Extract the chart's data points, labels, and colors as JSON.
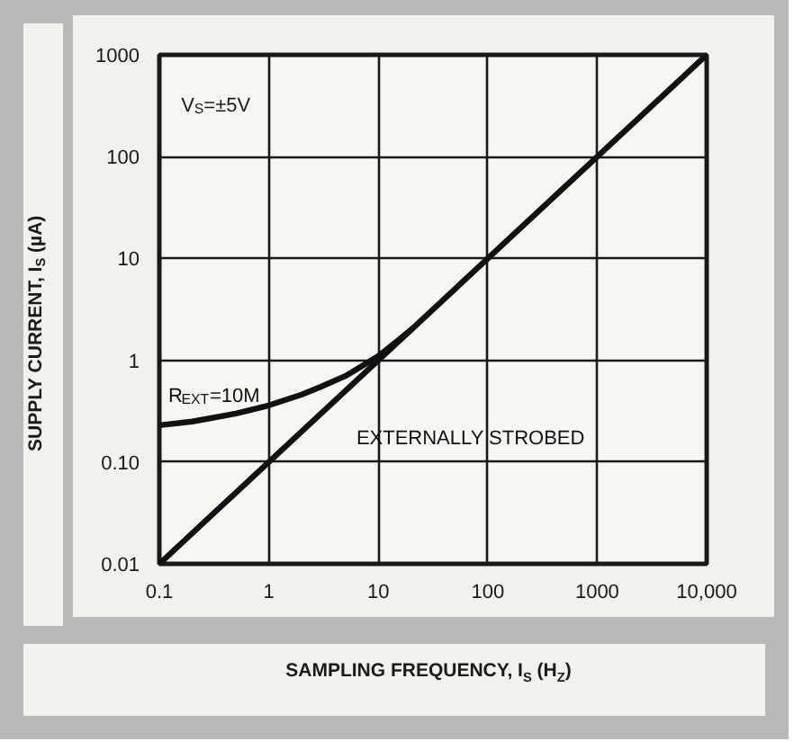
{
  "chart_data": {
    "type": "line",
    "xlabel": "SAMPLING FREQUENCY, I$_{S}$ (H$_{Z}$)",
    "ylabel": "SUPPLY CURRENT, I$_{S}$ (µA)",
    "log": "xy",
    "grid": true,
    "legend": false,
    "marker": "none",
    "line_style": "solid",
    "xlim": [
      0.1,
      10000
    ],
    "ylim": [
      0.01,
      1000
    ],
    "xticks": [
      0.1,
      1,
      10,
      100,
      1000,
      {
        "value": 10000,
        "label": "10,000"
      }
    ],
    "yticks": [
      0.01,
      {
        "value": 0.1,
        "label": "0.10"
      },
      1,
      10,
      100,
      1000
    ],
    "annotations": [
      "V$_{S}$=±5V"
    ],
    "series": [
      {
        "name": "R$_{EXT}$=10M",
        "color": "#111111",
        "x": [
          0.1,
          0.2,
          0.5,
          1,
          2,
          3,
          5,
          7,
          10,
          15,
          20
        ],
        "values": [
          0.23,
          0.25,
          0.3,
          0.36,
          0.46,
          0.55,
          0.7,
          0.87,
          1.1,
          1.55,
          2.0
        ]
      },
      {
        "name": "EXTERNALLY STROBED",
        "color": "#111111",
        "x": [
          0.1,
          10000
        ],
        "values": [
          0.01,
          1000
        ]
      }
    ]
  }
}
